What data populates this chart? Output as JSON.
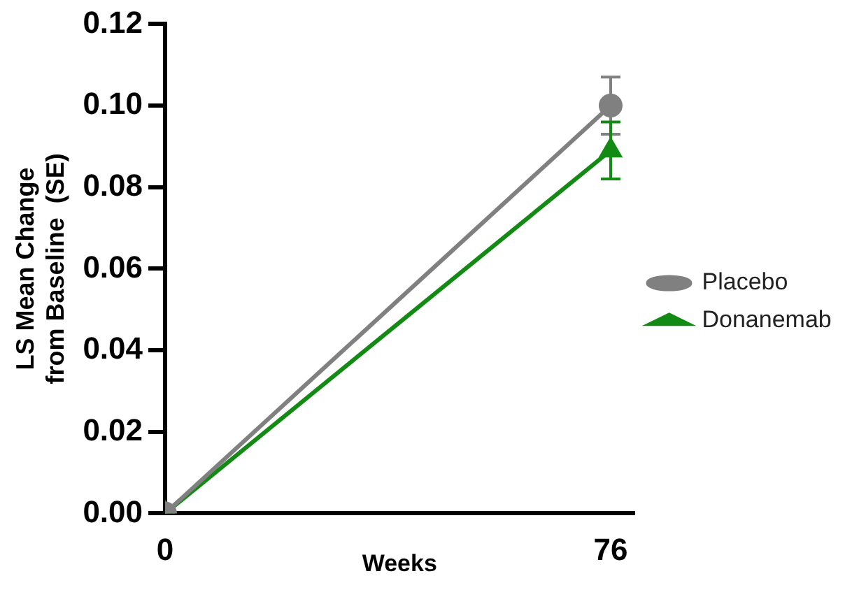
{
  "chart_data": {
    "type": "line",
    "xlabel": "Weeks",
    "ylabel": "LS Mean Change\nfrom Baseline  (SE)",
    "x": [
      0,
      76
    ],
    "xlim": [
      0,
      80
    ],
    "xticks": [
      0,
      76
    ],
    "ylim": [
      0,
      0.12
    ],
    "yticks": [
      {
        "value": 0,
        "label": "0.00"
      },
      {
        "value": 0.02,
        "label": "0.02"
      },
      {
        "value": 0.04,
        "label": "0.04"
      },
      {
        "value": 0.06,
        "label": "0.06"
      },
      {
        "value": 0.08,
        "label": "0.08"
      },
      {
        "value": 0.1,
        "label": "0.10"
      },
      {
        "value": 0.12,
        "label": "0.12"
      }
    ],
    "series": [
      {
        "name": "Placebo",
        "color": "#808080",
        "values": [
          0,
          0.1
        ],
        "errors": [
          null,
          0.007
        ],
        "marker": "circle"
      },
      {
        "name": "Donanemab",
        "color": "#138a13",
        "values": [
          0,
          0.089
        ],
        "errors": [
          null,
          0.007
        ],
        "marker": "triangle"
      }
    ],
    "grid": false,
    "legend": "right"
  }
}
